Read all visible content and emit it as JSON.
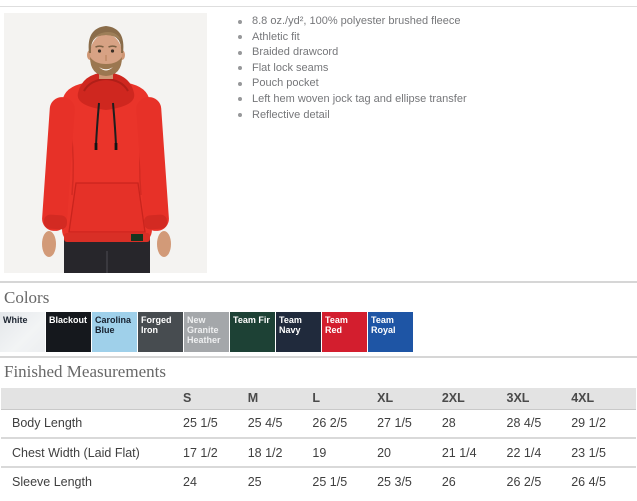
{
  "product": {
    "image_label": "Model wearing red pullover hoodie with black drawcords",
    "features": [
      "8.8 oz./yd², 100% polyester brushed fleece",
      "Athletic fit",
      "Braided drawcord",
      "Flat lock seams",
      "Pouch pocket",
      "Left hem woven jock tag and ellipse transfer",
      "Reflective detail"
    ]
  },
  "colors": {
    "title": "Colors",
    "swatches": [
      {
        "name": "White",
        "bg": "#eceef0",
        "fg": "#1c2430"
      },
      {
        "name": "Blackout",
        "bg": "#15181d",
        "fg": "#ffffff"
      },
      {
        "name": "Carolina Blue",
        "bg": "#9fd0ea",
        "fg": "#16202e"
      },
      {
        "name": "Forged Iron",
        "bg": "#474c50",
        "fg": "#ffffff"
      },
      {
        "name": "New Granite Heather",
        "bg": "#a4a7aa",
        "fg": "#eeeff0"
      },
      {
        "name": "Team Fir",
        "bg": "#1d4135",
        "fg": "#ffffff"
      },
      {
        "name": "Team Navy",
        "bg": "#202a3c",
        "fg": "#ffffff"
      },
      {
        "name": "Team Red",
        "bg": "#d31e2e",
        "fg": "#ffffff"
      },
      {
        "name": "Team Royal",
        "bg": "#1e55a5",
        "fg": "#ffffff"
      }
    ]
  },
  "measurements": {
    "title": "Finished Measurements",
    "columns": [
      "S",
      "M",
      "L",
      "XL",
      "2XL",
      "3XL",
      "4XL"
    ],
    "rows": [
      {
        "label": "Body Length",
        "values": [
          "25 1/5",
          "25 4/5",
          "26 2/5",
          "27 1/5",
          "28",
          "28 4/5",
          "29 1/2"
        ]
      },
      {
        "label": "Chest Width (Laid Flat)",
        "values": [
          "17 1/2",
          "18 1/2",
          "19",
          "20",
          "21 1/4",
          "22 1/4",
          "23 1/5"
        ]
      },
      {
        "label": "Sleeve Length",
        "values": [
          "24",
          "25",
          "25 1/5",
          "25 3/5",
          "26",
          "26 2/5",
          "26 4/5"
        ]
      }
    ]
  }
}
